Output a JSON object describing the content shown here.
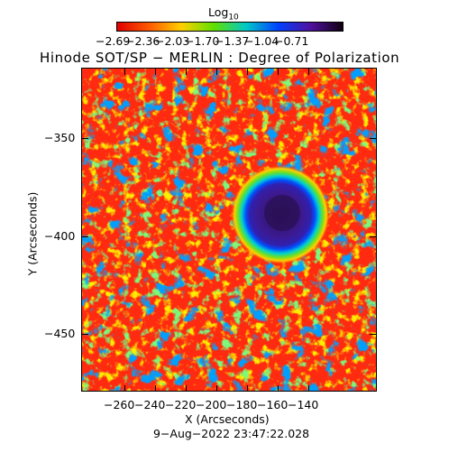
{
  "colorbar": {
    "title_base": "Log",
    "title_sub": "10",
    "tick_labels": [
      "−2.69",
      "−2.36",
      "−2.03",
      "−1.70",
      "−1.37",
      "−1.04",
      "−0.71"
    ],
    "colors": [
      "#e00000",
      "#ff5a00",
      "#ffd000",
      "#60e000",
      "#00c8c8",
      "#0040ff",
      "#5010a0",
      "#100010"
    ]
  },
  "title": "Hinode SOT/SP − MERLIN : Degree of Polarization",
  "x_axis": {
    "label": "X (Arcseconds)",
    "tick_labels": [
      "−260",
      "−240",
      "−220",
      "−200",
      "−180",
      "−160",
      "−140"
    ]
  },
  "y_axis": {
    "label": "Y (Arcseconds)",
    "tick_labels": [
      "−350",
      "−400",
      "−450"
    ]
  },
  "timestamp": "9−Aug−2022 23:47:22.028",
  "image": {
    "description": "solar active region degree-of-polarization map with a sunspot",
    "dominant_color": "#ff3010"
  }
}
